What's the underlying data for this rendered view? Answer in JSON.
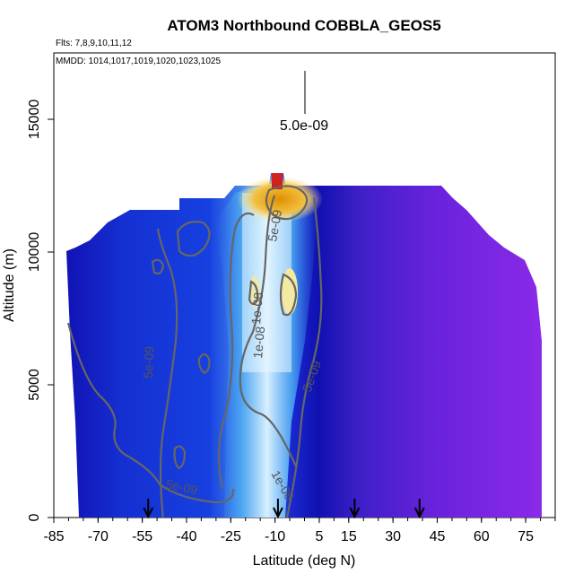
{
  "chart_data": {
    "type": "heatmap",
    "title": "ATOM3 Northbound COBBLA_GEOS5",
    "subtitle_flights": "Flts: 7,8,9,10,11,12",
    "subtitle_dates": "MMDD: 1014,1017,1019,1020,1023,1025",
    "xlabel": "Latitude (deg N)",
    "ylabel": "Altitude (m)",
    "xlim": [
      -85,
      85
    ],
    "ylim": [
      0,
      17500
    ],
    "x_ticks": [
      "-85",
      "-70",
      "-55",
      "-40",
      "-25",
      "-10",
      "5",
      "15",
      "30",
      "45",
      "60",
      "75"
    ],
    "y_ticks": [
      "0",
      "5000",
      "10000",
      "15000"
    ],
    "scale_label": "5.0e-09",
    "contour_labels": [
      "5e-09",
      "5e-09",
      "5e-09",
      "5e-09",
      "1e-08",
      "1e-08",
      "1e-08"
    ],
    "marker_latitudes": [
      -53,
      -9,
      17,
      39
    ],
    "colors": {
      "background_low": "#1a1ac8",
      "background_high": "#7d28e6",
      "peak": "#e8a000",
      "contour": "#666666"
    }
  }
}
